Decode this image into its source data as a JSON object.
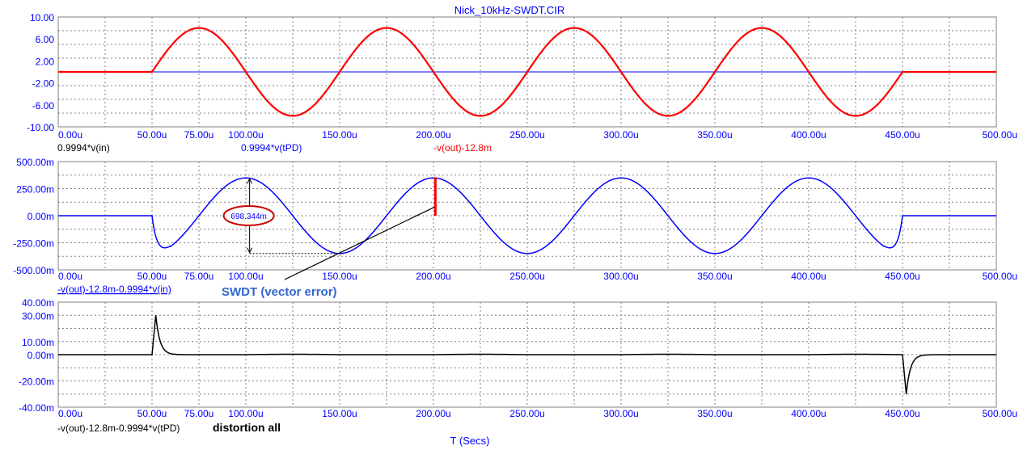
{
  "window_title": "Nick_10kHz-SWDT.CIR",
  "x_axis": {
    "label": "T (Secs)",
    "ticks": [
      0,
      50,
      75,
      100,
      150,
      200,
      250,
      300,
      350,
      400,
      450,
      500
    ],
    "tick_labels": [
      "0.00u",
      "50.00u",
      "75.00u",
      "100.00u",
      "150.00u",
      "200.00u",
      "250.00u",
      "300.00u",
      "350.00u",
      "400.00u",
      "450.00u",
      "500.00u"
    ],
    "range": [
      0,
      500
    ],
    "unit": "us"
  },
  "annotations": {
    "swdt_label": "SWDT (vector error)",
    "distortion_label": "distortion all",
    "pp_value": "698.344m"
  },
  "colors": {
    "grid": "#808080",
    "tick_text": "#0000ff",
    "red": "#ff0000",
    "dark_red": "#8b0000",
    "blue": "#0000ff",
    "black": "#000000",
    "swdt_text": "#3366cc",
    "ellipse": "#cc0000"
  },
  "chart_data": [
    {
      "type": "line",
      "ylim": [
        -10,
        10
      ],
      "yticks": [
        10,
        6,
        2,
        -2,
        -6,
        -10
      ],
      "ytick_labels": [
        "10.00",
        "6.00",
        "2.00",
        "-2.00",
        "-6.00",
        "-10.00"
      ],
      "series": [
        {
          "name": "0.9994*v(in)",
          "color": "#000000",
          "shape": "sine",
          "amplitude": 8,
          "start": 50,
          "end": 450,
          "period": 100
        },
        {
          "name": "0.9994*v(tPD)",
          "color": "#0000ff",
          "shape": "flat",
          "value": 0
        },
        {
          "name": "-v(out)-12.8m",
          "color": "#ff0000",
          "shape": "sine",
          "amplitude": 8,
          "start": 50,
          "end": 450,
          "period": 100
        }
      ]
    },
    {
      "type": "line",
      "ylim": [
        -500,
        500
      ],
      "yunit": "mV",
      "yticks": [
        500,
        250,
        0,
        -250,
        -500
      ],
      "ytick_labels": [
        "500.00m",
        "250.00m",
        "0.00m",
        "-250.00m",
        "-500.00m"
      ],
      "series": [
        {
          "name": "-v(out)-12.8m-0.9994*v(in)",
          "color": "#0000ff",
          "shape": "swdt",
          "amplitude": 349,
          "start": 50,
          "end": 450,
          "period": 100
        }
      ],
      "markers": {
        "cursor_x": 201,
        "cursor_y_top": 355,
        "cursor_y_bottom": 0,
        "pp_x": 102,
        "pp_top": 349,
        "pp_bottom": -349
      }
    },
    {
      "type": "line",
      "ylim": [
        -40,
        40
      ],
      "yunit": "mV",
      "yticks": [
        40,
        30,
        10,
        0,
        -20,
        -40
      ],
      "ytick_labels": [
        "40.00m",
        "30.00m",
        "10.00m",
        "0.00m",
        "-20.00m",
        "-40.00m"
      ],
      "series": [
        {
          "name": "-v(out)-12.8m-0.9994*v(tPD)",
          "color": "#000000",
          "shape": "spikes",
          "spike_pos": {
            "t": 52,
            "peak": 30
          },
          "spike_neg": {
            "t": 452,
            "peak": -30
          }
        }
      ]
    }
  ]
}
